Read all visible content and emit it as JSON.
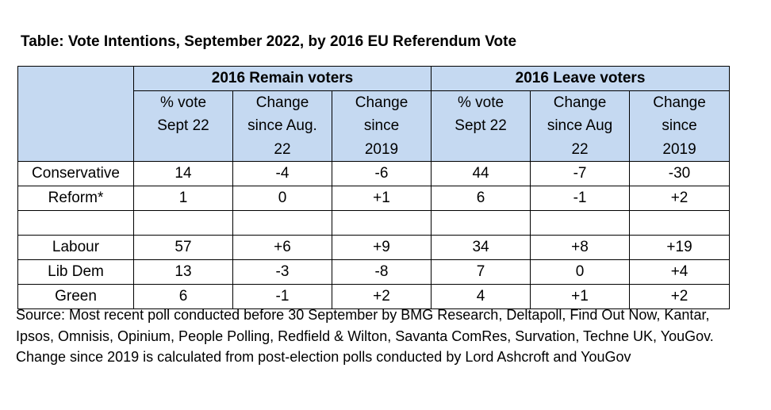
{
  "title": "Table: Vote Intentions, September 2022, by 2016 EU Referendum Vote",
  "groups": {
    "remain": "2016 Remain voters",
    "leave": "2016 Leave voters"
  },
  "columns": {
    "remain": {
      "vote": [
        "% vote",
        "Sept 22"
      ],
      "change_aug": [
        "Change",
        "since Aug.",
        "22"
      ],
      "change_2019": [
        "Change",
        "since",
        "2019"
      ]
    },
    "leave": {
      "vote": [
        "% vote",
        "Sept 22"
      ],
      "change_aug": [
        "Change",
        "since Aug",
        "22"
      ],
      "change_2019": [
        "Change",
        "since",
        "2019"
      ]
    }
  },
  "rows": [
    {
      "party": "Conservative",
      "values": [
        "14",
        "-4",
        "-6",
        "44",
        "-7",
        "-30"
      ]
    },
    {
      "party": "Reform*",
      "values": [
        "1",
        "0",
        "+1",
        "6",
        "-1",
        "+2"
      ]
    },
    {
      "party": "Labour",
      "values": [
        "57",
        "+6",
        "+9",
        "34",
        "+8",
        "+19"
      ]
    },
    {
      "party": "Lib Dem",
      "values": [
        "13",
        "-3",
        "-8",
        "7",
        "0",
        "+4"
      ]
    },
    {
      "party": "Green",
      "values": [
        "6",
        "-1",
        "+2",
        "4",
        "+1",
        "+2"
      ]
    }
  ],
  "source": "Source: Most recent poll conducted before 30 September by BMG Research, Deltapoll, Find Out Now, Kantar, Ipsos, Omnisis, Opinium, People Polling, Redfield & Wilton, Savanta ComRes, Survation, Techne UK, YouGov. Change since 2019 is calculated from post-election polls conducted by Lord Ashcroft and YouGov",
  "colors": {
    "header_fill": "#c5d9f1"
  }
}
